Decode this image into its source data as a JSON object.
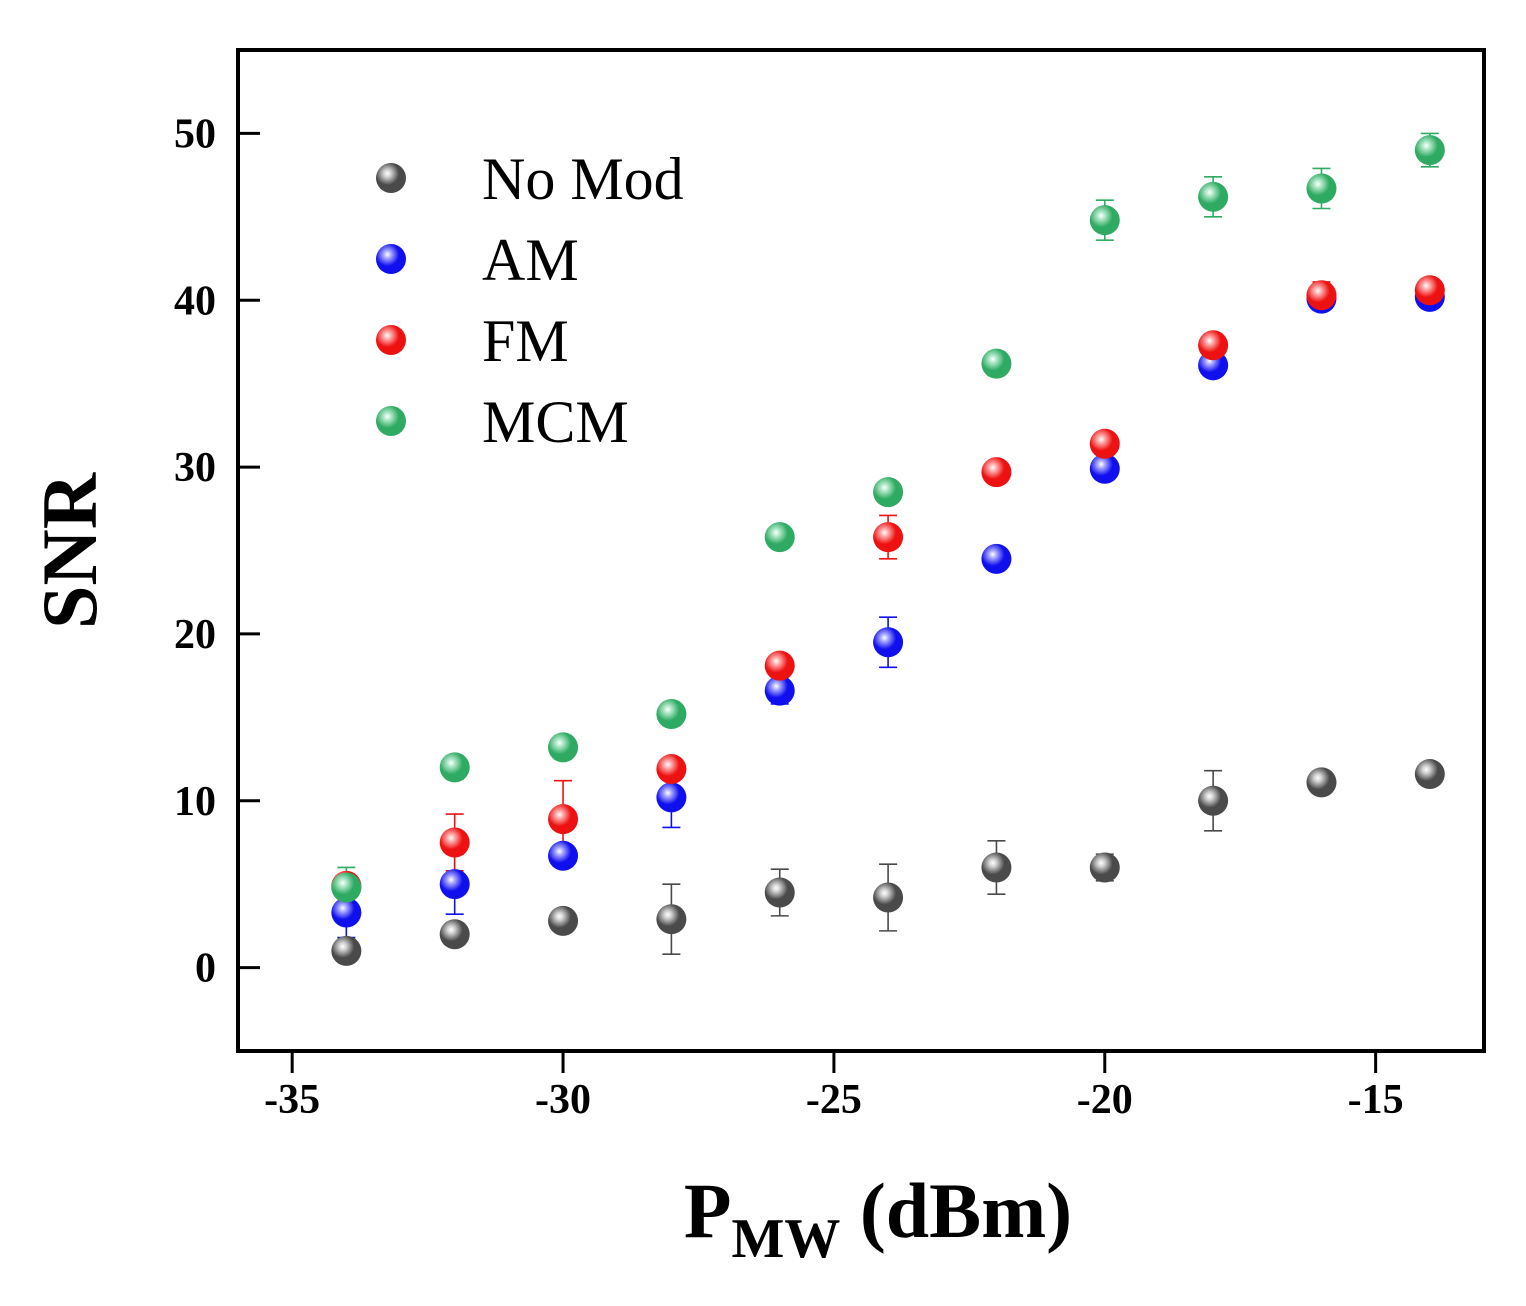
{
  "chart_data": {
    "type": "scatter",
    "title": "",
    "xlabel": {
      "main": "P",
      "sub": "MW",
      "units": "(dBm)"
    },
    "ylabel": "SNR",
    "xlim": [
      -36,
      -13
    ],
    "ylim": [
      -5,
      55
    ],
    "xticks": [
      -35,
      -30,
      -25,
      -20,
      -15
    ],
    "yticks": [
      0,
      10,
      20,
      30,
      40,
      50
    ],
    "xtick_labels": [
      "-35",
      "-30",
      "-25",
      "-20",
      "-15"
    ],
    "ytick_labels": [
      "0",
      "10",
      "20",
      "30",
      "40",
      "50"
    ],
    "legend_position": "top-left",
    "series": [
      {
        "name": "No Mod",
        "color": "#4a4a4a",
        "highlight": "#d0d0d0",
        "x": [
          -34,
          -32,
          -30,
          -28,
          -26,
          -24,
          -22,
          -20,
          -18,
          -16,
          -14
        ],
        "y": [
          1.0,
          2.0,
          2.8,
          2.9,
          4.5,
          4.2,
          6.0,
          6.0,
          10.0,
          11.1,
          11.6
        ],
        "err": [
          0.4,
          0.4,
          0.4,
          2.1,
          1.4,
          2.0,
          1.6,
          0.8,
          1.8,
          0.5,
          0.5
        ]
      },
      {
        "name": "AM",
        "color": "#1010ee",
        "highlight": "#a8a8ff",
        "x": [
          -34,
          -32,
          -30,
          -28,
          -26,
          -24,
          -22,
          -20,
          -18,
          -16,
          -14
        ],
        "y": [
          3.3,
          5.0,
          6.7,
          10.2,
          16.6,
          19.5,
          24.5,
          29.9,
          36.1,
          40.1,
          40.2
        ],
        "err": [
          1.5,
          1.8,
          0.5,
          1.8,
          0.8,
          1.5,
          0.5,
          0.5,
          0.5,
          0.5,
          0.5
        ]
      },
      {
        "name": "FM",
        "color": "#ee1111",
        "highlight": "#ffaaaa",
        "x": [
          -34,
          -32,
          -30,
          -28,
          -26,
          -24,
          -22,
          -20,
          -18,
          -16,
          -14
        ],
        "y": [
          4.9,
          7.5,
          8.9,
          11.9,
          18.1,
          25.8,
          29.7,
          31.4,
          37.3,
          40.3,
          40.6
        ],
        "err": [
          0.5,
          1.7,
          2.3,
          0.4,
          0.4,
          1.3,
          0.5,
          0.5,
          0.5,
          0.8,
          0.5
        ]
      },
      {
        "name": "MCM",
        "color": "#2eaa62",
        "highlight": "#b0e8c8",
        "x": [
          -34,
          -32,
          -30,
          -28,
          -26,
          -24,
          -22,
          -20,
          -18,
          -16,
          -14
        ],
        "y": [
          4.8,
          12.0,
          13.2,
          15.2,
          25.8,
          28.5,
          36.2,
          44.8,
          46.2,
          46.7,
          49.0
        ],
        "err": [
          1.2,
          0.7,
          0.7,
          0.7,
          0.5,
          0.5,
          0.7,
          1.2,
          1.2,
          1.2,
          1.0
        ]
      }
    ]
  }
}
